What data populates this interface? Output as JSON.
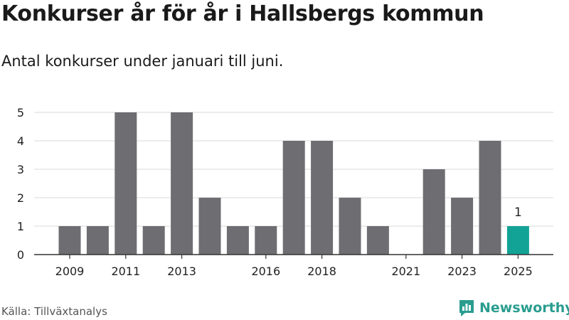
{
  "title": "Konkurser år för år i Hallsbergs kommun",
  "subtitle": "Antal konkurser under januari till juni.",
  "source": "Källa: Tillväxtanalys",
  "brand": "Newsworthy",
  "colors": {
    "bar": "#6e6d72",
    "highlight": "#12a396",
    "grid": "#d9d9d9",
    "brand": "#2a9d8f"
  },
  "chart_data": {
    "type": "bar",
    "categories": [
      "2009",
      "2010",
      "2011",
      "2012",
      "2013",
      "2014",
      "2015",
      "2016",
      "2017",
      "2018",
      "2019",
      "2020",
      "2021",
      "2022",
      "2023",
      "2024",
      "2025"
    ],
    "values": [
      1,
      1,
      5,
      1,
      5,
      2,
      1,
      1,
      4,
      4,
      2,
      1,
      0,
      3,
      2,
      4,
      1
    ],
    "x_tick_labels": [
      "2009",
      "2011",
      "2013",
      "2016",
      "2018",
      "2021",
      "2023",
      "2025"
    ],
    "highlight_category": "2025",
    "data_labels": [
      {
        "category": "2025",
        "text": "1"
      }
    ],
    "ylim": [
      0,
      5
    ],
    "yticks": [
      0,
      1,
      2,
      3,
      4,
      5
    ],
    "grid": true
  }
}
